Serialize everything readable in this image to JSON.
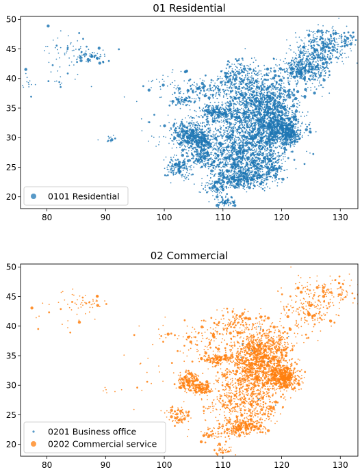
{
  "chart_data": [
    {
      "type": "scatter",
      "title": "01 Residential",
      "xlim": [
        75.5,
        133
      ],
      "ylim": [
        18,
        50.5
      ],
      "xticks": [
        80,
        90,
        100,
        110,
        120,
        130
      ],
      "yticks": [
        20,
        25,
        30,
        35,
        40,
        45,
        50
      ],
      "legend_position": "lower-left",
      "series": [
        {
          "name": "0101 Residential",
          "color": "#1f77b4",
          "clusters": [
            {
              "x": 116.5,
              "y": 35.5,
              "sx": 3.2,
              "sy": 3.0,
              "n": 1400
            },
            {
              "x": 114.5,
              "y": 30.5,
              "sx": 3.5,
              "sy": 2.2,
              "n": 700
            },
            {
              "x": 119.5,
              "y": 31.5,
              "sx": 1.6,
              "sy": 1.6,
              "n": 500
            },
            {
              "x": 121.5,
              "y": 30.8,
              "sx": 0.7,
              "sy": 0.8,
              "n": 250
            },
            {
              "x": 113.5,
              "y": 23.2,
              "sx": 2.5,
              "sy": 0.9,
              "n": 450
            },
            {
              "x": 104.5,
              "y": 30.5,
              "sx": 1.6,
              "sy": 1.3,
              "n": 450
            },
            {
              "x": 106.5,
              "y": 29.5,
              "sx": 1.2,
              "sy": 0.8,
              "n": 200
            },
            {
              "x": 102.5,
              "y": 25.0,
              "sx": 1.2,
              "sy": 0.9,
              "n": 150
            },
            {
              "x": 106.5,
              "y": 26.5,
              "sx": 1.0,
              "sy": 0.8,
              "n": 120
            },
            {
              "x": 109.0,
              "y": 34.3,
              "sx": 1.5,
              "sy": 0.6,
              "n": 220
            },
            {
              "x": 111.5,
              "y": 26.5,
              "sx": 2.5,
              "sy": 1.5,
              "n": 380
            },
            {
              "x": 116.0,
              "y": 26.5,
              "sx": 2.0,
              "sy": 1.6,
              "n": 280
            },
            {
              "x": 118.5,
              "y": 25.5,
              "sx": 1.0,
              "sy": 1.0,
              "n": 120
            },
            {
              "x": 125.5,
              "y": 43.5,
              "sx": 1.8,
              "sy": 2.2,
              "n": 420
            },
            {
              "x": 123.0,
              "y": 41.5,
              "sx": 1.5,
              "sy": 1.0,
              "n": 220
            },
            {
              "x": 129.0,
              "y": 46.0,
              "sx": 2.0,
              "sy": 1.3,
              "n": 200
            },
            {
              "x": 112.5,
              "y": 40.5,
              "sx": 1.8,
              "sy": 1.2,
              "n": 180
            },
            {
              "x": 107.0,
              "y": 38.0,
              "sx": 2.8,
              "sy": 1.2,
              "n": 150
            },
            {
              "x": 108.5,
              "y": 21.8,
              "sx": 1.5,
              "sy": 0.6,
              "n": 90
            },
            {
              "x": 110.0,
              "y": 19.2,
              "sx": 0.8,
              "sy": 0.6,
              "n": 70
            },
            {
              "x": 103.0,
              "y": 36.3,
              "sx": 1.0,
              "sy": 0.4,
              "n": 60
            },
            {
              "x": 87.5,
              "y": 43.8,
              "sx": 1.8,
              "sy": 0.6,
              "n": 60
            },
            {
              "x": 84.0,
              "y": 45.0,
              "sx": 2.5,
              "sy": 1.5,
              "n": 40
            },
            {
              "x": 82.0,
              "y": 40.5,
              "sx": 4.5,
              "sy": 1.8,
              "n": 25
            },
            {
              "x": 91.0,
              "y": 29.6,
              "sx": 1.2,
              "sy": 0.5,
              "n": 12
            },
            {
              "x": 100.5,
              "y": 39.5,
              "sx": 3.0,
              "sy": 1.2,
              "n": 30
            },
            {
              "x": 98.0,
              "y": 32.5,
              "sx": 2.5,
              "sy": 3.0,
              "n": 15
            },
            {
              "x": 76.5,
              "y": 39.0,
              "sx": 0.6,
              "sy": 0.6,
              "n": 10
            }
          ]
        }
      ]
    },
    {
      "type": "scatter",
      "title": "02 Commercial",
      "xlim": [
        75.5,
        133
      ],
      "ylim": [
        18,
        50.5
      ],
      "xticks": [
        80,
        90,
        100,
        110,
        120,
        130
      ],
      "yticks": [
        20,
        25,
        30,
        35,
        40,
        45,
        50
      ],
      "legend_position": "lower-left",
      "series": [
        {
          "name": "0201 Business office",
          "color": "#1f77b4",
          "clusters": [
            {
              "x": 116.5,
              "y": 33.0,
              "sx": 2.5,
              "sy": 2.5,
              "n": 20
            }
          ]
        },
        {
          "name": "0202 Commercial service",
          "color": "#ff7f0e",
          "clusters": [
            {
              "x": 116.5,
              "y": 35.0,
              "sx": 2.6,
              "sy": 2.6,
              "n": 1100
            },
            {
              "x": 120.5,
              "y": 31.3,
              "sx": 1.3,
              "sy": 1.0,
              "n": 450
            },
            {
              "x": 114.5,
              "y": 30.5,
              "sx": 3.0,
              "sy": 2.0,
              "n": 350
            },
            {
              "x": 113.5,
              "y": 23.0,
              "sx": 1.8,
              "sy": 0.7,
              "n": 280
            },
            {
              "x": 104.3,
              "y": 30.6,
              "sx": 1.0,
              "sy": 0.8,
              "n": 200
            },
            {
              "x": 106.5,
              "y": 29.6,
              "sx": 0.8,
              "sy": 0.6,
              "n": 100
            },
            {
              "x": 102.5,
              "y": 25.0,
              "sx": 1.0,
              "sy": 0.8,
              "n": 80
            },
            {
              "x": 109.0,
              "y": 34.3,
              "sx": 1.3,
              "sy": 0.5,
              "n": 120
            },
            {
              "x": 111.5,
              "y": 27.0,
              "sx": 2.5,
              "sy": 1.6,
              "n": 200
            },
            {
              "x": 116.0,
              "y": 26.5,
              "sx": 2.0,
              "sy": 1.5,
              "n": 160
            },
            {
              "x": 124.5,
              "y": 43.0,
              "sx": 2.5,
              "sy": 2.2,
              "n": 200
            },
            {
              "x": 129.0,
              "y": 46.0,
              "sx": 2.0,
              "sy": 1.3,
              "n": 90
            },
            {
              "x": 112.0,
              "y": 40.5,
              "sx": 2.0,
              "sy": 1.2,
              "n": 110
            },
            {
              "x": 107.0,
              "y": 37.5,
              "sx": 2.5,
              "sy": 1.5,
              "n": 90
            },
            {
              "x": 108.5,
              "y": 21.8,
              "sx": 1.5,
              "sy": 0.6,
              "n": 60
            },
            {
              "x": 110.0,
              "y": 19.0,
              "sx": 0.8,
              "sy": 0.5,
              "n": 40
            },
            {
              "x": 87.5,
              "y": 44.0,
              "sx": 1.5,
              "sy": 0.6,
              "n": 25
            },
            {
              "x": 83.5,
              "y": 44.0,
              "sx": 2.5,
              "sy": 1.5,
              "n": 25
            },
            {
              "x": 82.0,
              "y": 41.0,
              "sx": 3.0,
              "sy": 1.5,
              "n": 12
            },
            {
              "x": 100.5,
              "y": 38.5,
              "sx": 3.0,
              "sy": 1.5,
              "n": 25
            },
            {
              "x": 98.0,
              "y": 31.5,
              "sx": 2.5,
              "sy": 3.0,
              "n": 15
            },
            {
              "x": 91.0,
              "y": 29.0,
              "sx": 1.0,
              "sy": 0.5,
              "n": 6
            }
          ]
        }
      ]
    }
  ]
}
